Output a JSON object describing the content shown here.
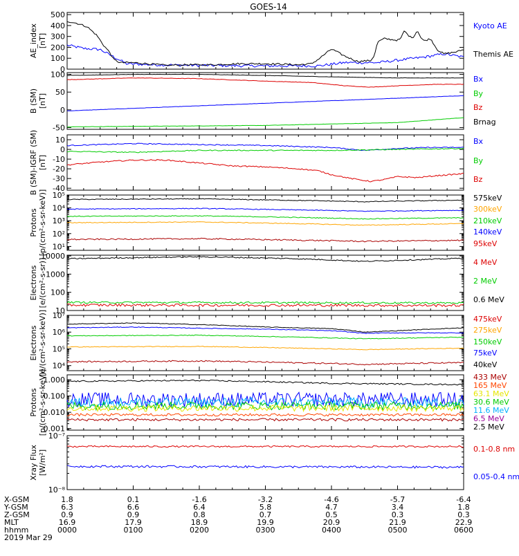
{
  "title": "GOES-14",
  "colors": {
    "black": "#000000",
    "blue": "#0000ff",
    "green": "#00cc00",
    "red": "#dd0000",
    "orange": "#ffa500",
    "yellow": "#e6e600",
    "cyan": "#00b0ff",
    "darkred": "#aa0000",
    "orangered": "#ff4500",
    "purple": "#990099",
    "maroon": "#990000"
  },
  "chart_data": [
    {
      "type": "line",
      "panel": "ae",
      "ylabel": [
        "AE_index",
        "[nT]"
      ],
      "ylim": [
        0,
        520
      ],
      "yscale": "linear",
      "ticks": [
        {
          "v": 500,
          "label": "500"
        },
        {
          "v": 400,
          "label": "400"
        },
        {
          "v": 300,
          "label": "300"
        },
        {
          "v": 200,
          "label": "200"
        },
        {
          "v": 100,
          "label": "100"
        },
        {
          "v": 0,
          "label": "0"
        }
      ],
      "legend": [
        {
          "label": "Kyoto AE",
          "color": "blue"
        },
        {
          "label": "Themis AE",
          "color": "black"
        }
      ],
      "series": [
        {
          "name": "Kyoto AE",
          "color": "blue",
          "noise": 12,
          "x": [
            0,
            0.25,
            0.5,
            0.65,
            0.9,
            1.3,
            2,
            2.8,
            3.8,
            4.2,
            4.7,
            5.4,
            5.7,
            6
          ],
          "y": [
            220,
            190,
            180,
            130,
            50,
            40,
            35,
            30,
            30,
            60,
            60,
            110,
            140,
            110
          ]
        },
        {
          "name": "Themis AE",
          "color": "black",
          "noise": 8,
          "x": [
            0,
            0.15,
            0.3,
            0.45,
            0.55,
            0.65,
            0.7,
            0.8,
            1.0,
            1.2,
            1.5,
            1.8,
            2.2,
            2.6,
            3.0,
            3.3,
            3.5,
            3.7,
            3.8,
            4.0,
            4.2,
            4.4,
            4.6,
            4.65,
            4.7,
            4.8,
            5.0,
            5.05,
            5.1,
            5.2,
            5.25,
            5.3,
            5.35,
            5.4,
            5.5,
            5.6,
            5.7,
            5.8,
            5.9,
            6.0
          ],
          "y": [
            440,
            420,
            390,
            310,
            220,
            150,
            90,
            60,
            60,
            50,
            35,
            40,
            40,
            50,
            50,
            45,
            40,
            50,
            90,
            185,
            120,
            70,
            80,
            130,
            250,
            280,
            265,
            280,
            350,
            290,
            300,
            360,
            290,
            260,
            280,
            180,
            140,
            150,
            160,
            180
          ]
        }
      ]
    },
    {
      "type": "line",
      "panel": "bsm",
      "ylabel": [
        "B (SM)",
        "[nT]"
      ],
      "ylim": [
        -55,
        105
      ],
      "yscale": "linear",
      "ticks": [
        {
          "v": 100,
          "label": "100"
        },
        {
          "v": 50,
          "label": "50"
        },
        {
          "v": 0,
          "label": "0"
        },
        {
          "v": -50,
          "label": "-50"
        }
      ],
      "legend": [
        {
          "label": "Bx",
          "color": "blue"
        },
        {
          "label": "By",
          "color": "green"
        },
        {
          "label": "Bz",
          "color": "red"
        },
        {
          "label": "Brnag",
          "color": "black"
        }
      ],
      "series": [
        {
          "name": "Bx",
          "color": "blue",
          "noise": 0.4,
          "x": [
            0,
            6
          ],
          "y": [
            -3,
            40
          ]
        },
        {
          "name": "By",
          "color": "green",
          "noise": 0.4,
          "x": [
            0,
            3,
            5,
            6
          ],
          "y": [
            -48,
            -44,
            -36,
            -22
          ]
        },
        {
          "name": "Bz",
          "color": "red",
          "noise": 0.6,
          "x": [
            0,
            1,
            2,
            3,
            3.7,
            4.2,
            4.6,
            5,
            5.6,
            6
          ],
          "y": [
            85,
            90,
            88,
            81,
            77,
            68,
            64,
            68,
            72,
            72
          ]
        },
        {
          "name": "Brnag",
          "color": "black",
          "noise": 0.4,
          "x": [
            0,
            1,
            2,
            3,
            4,
            5,
            6
          ],
          "y": [
            97,
            100,
            100,
            97,
            93,
            90,
            90
          ]
        }
      ]
    },
    {
      "type": "line",
      "panel": "digrf",
      "ylabel": [
        "B (SM)-IGRF (SM)",
        "[nT]"
      ],
      "ylim": [
        -42,
        15
      ],
      "yscale": "linear",
      "ticks": [
        {
          "v": 10,
          "label": "10"
        },
        {
          "v": 0,
          "label": "0"
        },
        {
          "v": -10,
          "label": "-10"
        },
        {
          "v": -20,
          "label": "-20"
        },
        {
          "v": -30,
          "label": "-30"
        },
        {
          "v": -40,
          "label": "-40"
        }
      ],
      "legend": [
        {
          "label": "Bx",
          "color": "blue"
        },
        {
          "label": "By",
          "color": "green"
        },
        {
          "label": "Bz",
          "color": "red"
        }
      ],
      "series": [
        {
          "name": "Bx",
          "color": "blue",
          "noise": 0.5,
          "x": [
            0,
            1,
            2,
            3,
            4,
            4.5,
            5,
            5.5,
            6
          ],
          "y": [
            4,
            6,
            5,
            4,
            2,
            -1,
            1,
            2,
            2
          ]
        },
        {
          "name": "By",
          "color": "green",
          "noise": 0.5,
          "x": [
            0,
            1,
            2,
            3,
            4,
            5,
            6
          ],
          "y": [
            -2,
            -3,
            -1,
            -1,
            -1,
            0,
            1
          ]
        },
        {
          "name": "Bz",
          "color": "red",
          "noise": 0.6,
          "x": [
            0,
            0.5,
            1,
            1.5,
            2,
            2.5,
            3,
            3.5,
            3.8,
            4,
            4.3,
            4.6,
            4.8,
            5,
            5.3,
            5.6,
            6
          ],
          "y": [
            -16,
            -13,
            -11,
            -11,
            -14,
            -17,
            -18,
            -20,
            -22,
            -26,
            -30,
            -33,
            -31,
            -28,
            -29,
            -27,
            -25
          ]
        }
      ]
    },
    {
      "type": "line",
      "panel": "protons_lo",
      "ylabel": [
        "Protons",
        "[p/(cm²-s-sr-keV)]"
      ],
      "ylim": [
        5,
        100000
      ],
      "yscale": "log",
      "ticks": [
        {
          "v": 100000,
          "label": "10⁵"
        },
        {
          "v": 10000,
          "label": "10⁴"
        },
        {
          "v": 1000,
          "label": "10³"
        },
        {
          "v": 100,
          "label": "10²"
        },
        {
          "v": 10,
          "label": "10¹"
        }
      ],
      "legend": [
        {
          "label": "575keV",
          "color": "black"
        },
        {
          "label": "300keV",
          "color": "orange"
        },
        {
          "label": "210keV",
          "color": "green"
        },
        {
          "label": "140keV",
          "color": "blue"
        },
        {
          "label": "95keV",
          "color": "red"
        }
      ],
      "series": [
        {
          "name": "575keV",
          "color": "black",
          "noise": 0.03,
          "x": [
            0,
            2,
            4.5,
            6
          ],
          "y": [
            45000,
            50000,
            30000,
            40000
          ]
        },
        {
          "name": "300keV",
          "color": "blue",
          "noise": 0.03,
          "x": [
            0,
            2,
            4.5,
            6
          ],
          "y": [
            8000,
            9000,
            5500,
            6500
          ]
        },
        {
          "name": "210keV",
          "color": "green",
          "noise": 0.03,
          "x": [
            0,
            2,
            4.5,
            6
          ],
          "y": [
            2200,
            2400,
            1400,
            1700
          ]
        },
        {
          "name": "140keV",
          "color": "orange",
          "noise": 0.03,
          "x": [
            0,
            2,
            4.5,
            6
          ],
          "y": [
            700,
            800,
            450,
            600
          ]
        },
        {
          "name": "95keV",
          "color": "darkred",
          "noise": 0.05,
          "x": [
            0,
            2,
            4.5,
            6
          ],
          "y": [
            35,
            40,
            25,
            30
          ]
        }
      ]
    },
    {
      "type": "line",
      "panel": "electrons_hi",
      "ylabel": [
        "Electrons",
        "[e/(cm²-s-sr)]"
      ],
      "ylim": [
        10,
        11000
      ],
      "yscale": "log",
      "ticks": [
        {
          "v": 10000,
          "label": "10000"
        },
        {
          "v": 1000,
          "label": "1000"
        },
        {
          "v": 100,
          "label": "100"
        },
        {
          "v": 10,
          "label": "10"
        }
      ],
      "legend": [
        {
          "label": "4 MeV",
          "color": "red"
        },
        {
          "label": "2 MeV",
          "color": "green"
        },
        {
          "label": "0.6 MeV",
          "color": "black"
        }
      ],
      "series": [
        {
          "name": "0.6 MeV",
          "color": "black",
          "noise": 0.03,
          "x": [
            0,
            2,
            3.5,
            4.5,
            5.5,
            6
          ],
          "y": [
            7000,
            9000,
            7000,
            5000,
            6500,
            7500
          ]
        },
        {
          "name": "2 MeV",
          "color": "green",
          "noise": 0.05,
          "x": [
            0,
            6
          ],
          "y": [
            28,
            26
          ]
        },
        {
          "name": "4 MeV",
          "color": "red",
          "noise": 0.07,
          "x": [
            0,
            6
          ],
          "y": [
            20,
            19
          ]
        }
      ]
    },
    {
      "type": "line",
      "panel": "electrons_lo",
      "ylabel": [
        "Electrons",
        "[e/(cm²-s-sr-keV)]"
      ],
      "ylim": [
        5000,
        10000000
      ],
      "yscale": "log",
      "ticks": [
        {
          "v": 10000000,
          "label": "10⁷"
        },
        {
          "v": 1000000,
          "label": "10⁶"
        },
        {
          "v": 100000,
          "label": "10⁵"
        },
        {
          "v": 10000,
          "label": "10⁴"
        }
      ],
      "legend": [
        {
          "label": "475keV",
          "color": "red"
        },
        {
          "label": "275keV",
          "color": "orange"
        },
        {
          "label": "150keV",
          "color": "green"
        },
        {
          "label": "75keV",
          "color": "blue"
        },
        {
          "label": "40keV",
          "color": "black"
        }
      ],
      "series": [
        {
          "name": "40keV",
          "color": "black",
          "noise": 0.02,
          "x": [
            0,
            1,
            2,
            3,
            4,
            4.5,
            5,
            6
          ],
          "y": [
            3000000,
            3500000,
            2800000,
            2000000,
            1600000,
            1000000,
            1200000,
            1800000
          ]
        },
        {
          "name": "75keV",
          "color": "blue",
          "noise": 0.02,
          "x": [
            0,
            1,
            2,
            3,
            4,
            4.5,
            5,
            6
          ],
          "y": [
            1800000,
            2000000,
            1700000,
            1500000,
            1200000,
            850000,
            900000,
            900000
          ]
        },
        {
          "name": "150keV",
          "color": "green",
          "noise": 0.02,
          "x": [
            0,
            2,
            4.5,
            6
          ],
          "y": [
            600000,
            650000,
            400000,
            500000
          ]
        },
        {
          "name": "275keV",
          "color": "orange",
          "noise": 0.02,
          "x": [
            0,
            2,
            4.5,
            6
          ],
          "y": [
            130000,
            140000,
            90000,
            110000
          ]
        },
        {
          "name": "475keV",
          "color": "darkred",
          "noise": 0.04,
          "x": [
            0,
            2,
            4.5,
            6
          ],
          "y": [
            17000,
            19000,
            12000,
            15000
          ]
        }
      ]
    },
    {
      "type": "line",
      "panel": "protons_hi",
      "ylabel": [
        "Protons",
        "[p/(cm²-s-sr-keV)]"
      ],
      "ylim": [
        0.0008,
        2
      ],
      "yscale": "log",
      "ticks": [
        {
          "v": 1,
          "label": "1.000"
        },
        {
          "v": 0.1,
          "label": "0.100"
        },
        {
          "v": 0.01,
          "label": "0.010"
        },
        {
          "v": 0.001,
          "label": "0.001"
        }
      ],
      "legend": [
        {
          "label": "433 MeV",
          "color": "darkred"
        },
        {
          "label": "165 MeV",
          "color": "orangered"
        },
        {
          "label": "63.1 MeV",
          "color": "yellow"
        },
        {
          "label": "30.6 MeV",
          "color": "green"
        },
        {
          "label": "11.6 MeV",
          "color": "cyan"
        },
        {
          "label": "6.5 MeV",
          "color": "purple"
        },
        {
          "label": "2.5 MeV",
          "color": "black"
        }
      ],
      "series": [
        {
          "name": "2.5 MeV",
          "color": "black",
          "noise": 0.04,
          "x": [
            0,
            2,
            4,
            6
          ],
          "y": [
            0.8,
            0.9,
            0.6,
            0.5
          ]
        },
        {
          "name": "6.5 MeV",
          "color": "blue",
          "noise": 0.45,
          "x": [
            0,
            6
          ],
          "y": [
            0.06,
            0.06
          ]
        },
        {
          "name": "11.6 MeV",
          "color": "cyan",
          "noise": 0.3,
          "x": [
            0,
            6
          ],
          "y": [
            0.04,
            0.04
          ]
        },
        {
          "name": "30.6 MeV",
          "color": "green",
          "noise": 0.25,
          "x": [
            0,
            6
          ],
          "y": [
            0.025,
            0.025
          ]
        },
        {
          "name": "63.1 MeV",
          "color": "yellow",
          "noise": 0.2,
          "x": [
            0,
            6
          ],
          "y": [
            0.018,
            0.018
          ]
        },
        {
          "name": "165 MeV",
          "color": "orangered",
          "noise": 0.08,
          "x": [
            0,
            6
          ],
          "y": [
            0.007,
            0.007
          ]
        },
        {
          "name": "433 MeV",
          "color": "darkred",
          "noise": 0.08,
          "x": [
            0,
            6
          ],
          "y": [
            0.0035,
            0.0035
          ]
        }
      ]
    },
    {
      "type": "line",
      "panel": "xray",
      "ylabel": [
        "Xray Flux",
        "[W/m²]"
      ],
      "ylim": [
        1e-08,
        1e-07
      ],
      "yscale": "log",
      "ticks": [
        {
          "v": 1e-07,
          "label": "10⁻⁷"
        },
        {
          "v": 1e-08,
          "label": "10⁻⁸"
        }
      ],
      "legend": [
        {
          "label": "0.1-0.8 nm",
          "color": "red"
        },
        {
          "label": "0.05-0.4 nm",
          "color": "blue"
        }
      ],
      "series": [
        {
          "name": "0.1-0.8 nm",
          "color": "red",
          "noise": 0.015,
          "x": [
            0,
            6
          ],
          "y": [
            6.3e-08,
            6.3e-08
          ]
        },
        {
          "name": "0.05-0.4 nm",
          "color": "blue",
          "noise": 0.02,
          "x": [
            0,
            6
          ],
          "y": [
            2.7e-08,
            2.6e-08
          ]
        }
      ]
    }
  ],
  "axis_table": {
    "rows": [
      {
        "label": "X-GSM",
        "values": [
          "1.8",
          "0.1",
          "-1.6",
          "-3.2",
          "-4.6",
          "-5.7",
          "-6.4"
        ]
      },
      {
        "label": "Y-GSM",
        "values": [
          "6.3",
          "6.6",
          "6.4",
          "5.8",
          "4.7",
          "3.4",
          "1.8"
        ]
      },
      {
        "label": "Z-GSM",
        "values": [
          "0.9",
          "0.9",
          "0.8",
          "0.7",
          "0.5",
          "0.3",
          "0.3"
        ]
      },
      {
        "label": "MLT",
        "values": [
          "16.9",
          "17.9",
          "18.9",
          "19.9",
          "20.9",
          "21.9",
          "22.9"
        ]
      },
      {
        "label": "hhmm",
        "values": [
          "0000",
          "0100",
          "0200",
          "0300",
          "0400",
          "0500",
          "0600"
        ]
      }
    ],
    "date": "2019 Mar 29"
  }
}
